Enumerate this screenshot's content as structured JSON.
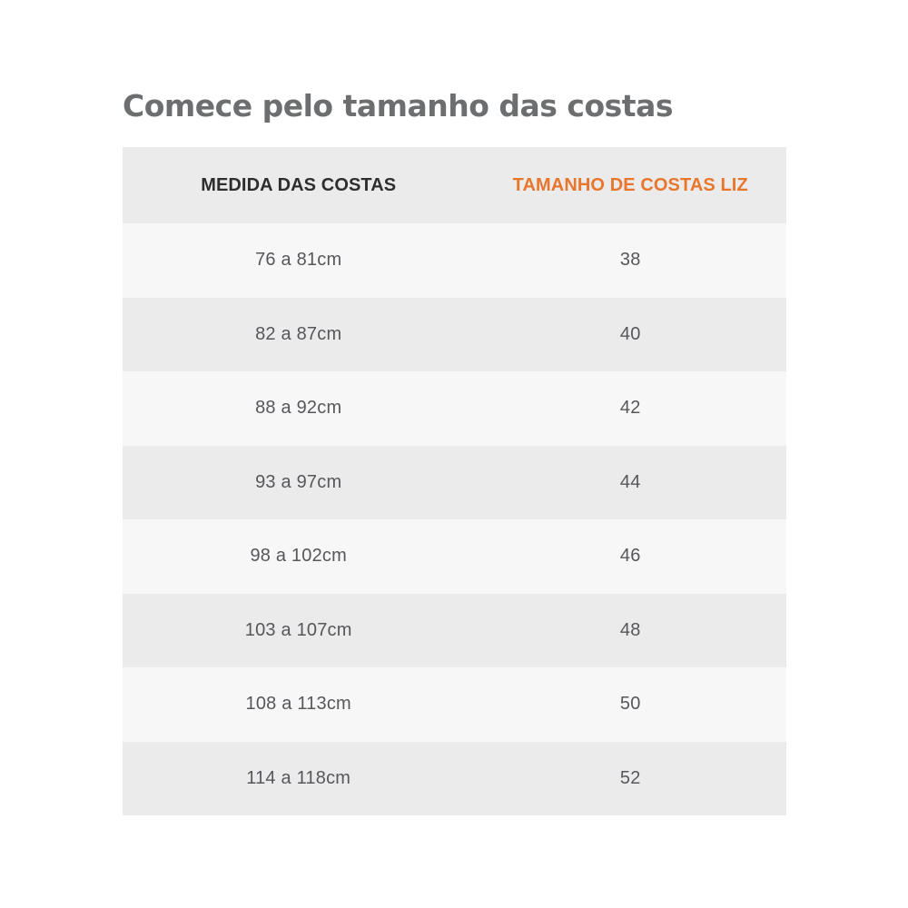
{
  "page": {
    "title": "Comece pelo tamanho das costas"
  },
  "table": {
    "columns": [
      {
        "label": "MEDIDA DAS COSTAS"
      },
      {
        "label": "TAMANHO DE COSTAS LIZ"
      }
    ],
    "rows": [
      {
        "measure": "76 a 81cm",
        "size": "38"
      },
      {
        "measure": "82 a 87cm",
        "size": "40"
      },
      {
        "measure": "88 a 92cm",
        "size": "42"
      },
      {
        "measure": "93 a 97cm",
        "size": "44"
      },
      {
        "measure": "98 a 102cm",
        "size": "46"
      },
      {
        "measure": "103 a 107cm",
        "size": "48"
      },
      {
        "measure": "108 a 113cm",
        "size": "50"
      },
      {
        "measure": "114 a 118cm",
        "size": "52"
      }
    ]
  },
  "colors": {
    "accent_orange": "#e8762c",
    "title_gray": "#6d6e70",
    "header_text": "#2e2e2e",
    "cell_text": "#56575b",
    "row_light": "#f7f7f7",
    "row_gray": "#ebebeb"
  }
}
